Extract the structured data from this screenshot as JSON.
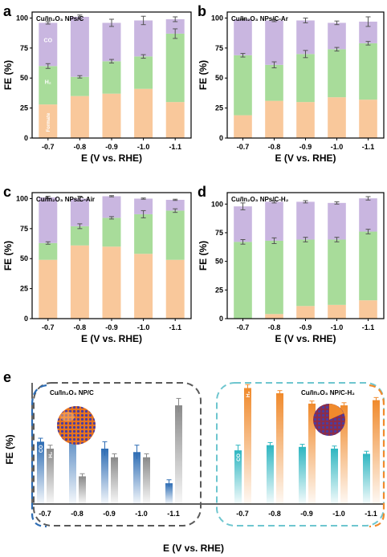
{
  "chart_data": [
    {
      "type": "bar",
      "stacked": true,
      "panel": "a",
      "title": "Cu/In₂O₃ NPs/C",
      "xlabel": "E (V vs. RHE)",
      "ylabel": "FE (%)",
      "categories": [
        "-0.7",
        "-0.8",
        "-0.9",
        "-1.0",
        "-1.1"
      ],
      "ylim": [
        0,
        105
      ],
      "yticks": [
        0,
        25,
        50,
        75,
        100
      ],
      "series": [
        {
          "name": "Formate",
          "color": "#F9C89B",
          "values": [
            28,
            35,
            37,
            41,
            30
          ]
        },
        {
          "name": "H₂",
          "color": "#A8DC9A",
          "values": [
            32,
            16,
            27,
            27,
            57
          ]
        },
        {
          "name": "CO",
          "color": "#C9B6E0",
          "values": [
            36,
            50,
            32,
            30,
            12
          ]
        }
      ],
      "error_bars": [
        {
          "at": "formate+h2",
          "values": [
            60,
            51,
            64,
            68,
            87
          ],
          "err": [
            2,
            1,
            1.5,
            1.5,
            4
          ]
        },
        {
          "at": "total",
          "values": [
            96,
            101,
            96,
            98,
            99
          ],
          "err": [
            1,
            1.5,
            3,
            3.5,
            2
          ]
        }
      ],
      "series_labels": [
        "CO",
        "H₂",
        "Formate"
      ]
    },
    {
      "type": "bar",
      "stacked": true,
      "panel": "b",
      "title": "Cu/In₂O₃ NPs/C-Ar",
      "xlabel": "E (V vs. RHE)",
      "ylabel": "FE (%)",
      "categories": [
        "-0.7",
        "-0.8",
        "-0.9",
        "-1.0",
        "-1.1"
      ],
      "ylim": [
        0,
        105
      ],
      "yticks": [
        0,
        25,
        50,
        75,
        100
      ],
      "series": [
        {
          "color": "#F9C89B",
          "values": [
            19,
            31,
            30,
            34,
            32
          ]
        },
        {
          "color": "#A8DC9A",
          "values": [
            50,
            30,
            40,
            40,
            47
          ]
        },
        {
          "color": "#C9B6E0",
          "values": [
            30,
            37,
            28,
            22,
            18
          ]
        }
      ],
      "error_bars": [
        {
          "at": "formate+h2",
          "values": [
            69,
            61,
            70,
            74,
            79
          ],
          "err": [
            1.5,
            2.5,
            3,
            1.5,
            1.5
          ]
        },
        {
          "at": "total",
          "values": [
            99,
            98,
            98,
            96,
            97
          ],
          "err": [
            0.5,
            1,
            2,
            1.5,
            4
          ]
        }
      ]
    },
    {
      "type": "bar",
      "stacked": true,
      "panel": "c",
      "title": "Cu/In₂O₃ NPs/C-Air",
      "xlabel": "E (V vs. RHE)",
      "ylabel": "FE (%)",
      "categories": [
        "-0.7",
        "-0.8",
        "-0.9",
        "-1.0",
        "-1.1"
      ],
      "ylim": [
        0,
        105
      ],
      "yticks": [
        0,
        25,
        50,
        75,
        100
      ],
      "series": [
        {
          "color": "#F9C89B",
          "values": [
            49,
            61,
            60,
            54,
            49
          ]
        },
        {
          "color": "#A8DC9A",
          "values": [
            14,
            16,
            24,
            33,
            41
          ]
        },
        {
          "color": "#C9B6E0",
          "values": [
            38,
            23,
            18,
            13,
            9
          ]
        }
      ],
      "error_bars": [
        {
          "at": "formate+h2",
          "values": [
            63,
            77,
            84,
            87,
            90
          ],
          "err": [
            1,
            2,
            1,
            3,
            1.5
          ]
        },
        {
          "at": "total",
          "values": [
            101,
            100,
            102,
            100,
            99
          ],
          "err": [
            1,
            2,
            0.5,
            0.5,
            0.5
          ]
        }
      ]
    },
    {
      "type": "bar",
      "stacked": true,
      "panel": "d",
      "title": "Cu/In₂O₃ NPs/C-H₂",
      "xlabel": "E (V vs. RHE)",
      "ylabel": "FE (%)",
      "categories": [
        "-0.7",
        "-0.8",
        "-0.9",
        "-1.0",
        "-1.1"
      ],
      "ylim": [
        0,
        110
      ],
      "yticks": [
        0,
        25,
        50,
        75,
        100
      ],
      "series": [
        {
          "color": "#F9C89B",
          "values": [
            0,
            4,
            11,
            12,
            16
          ]
        },
        {
          "color": "#A8DC9A",
          "values": [
            67,
            64,
            58,
            57,
            60
          ]
        },
        {
          "color": "#C9B6E0",
          "values": [
            31,
            34,
            33,
            32,
            29
          ]
        }
      ],
      "error_bars": [
        {
          "at": "formate+h2",
          "values": [
            67,
            68,
            69,
            69,
            76
          ],
          "err": [
            2,
            2.5,
            2,
            2,
            2
          ]
        },
        {
          "at": "total",
          "values": [
            98,
            102,
            102,
            101,
            105
          ],
          "err": [
            3,
            1,
            1,
            1,
            1.5
          ]
        }
      ]
    },
    {
      "type": "bar",
      "panel": "e",
      "xlabel": "E (V vs. RHE)",
      "ylabel": "FE (%)",
      "ylim": [
        0,
        70
      ],
      "left_group": {
        "title": "Cu/In₂O₃ NP/C",
        "categories": [
          "-0.7",
          "-0.8",
          "-0.9",
          "-1.0",
          "-1.1"
        ],
        "series": [
          {
            "name": "CO",
            "color": "#2E6DB4",
            "values": [
              36,
              50,
              32,
              30,
              12
            ],
            "err": [
              2,
              2,
              4,
              4,
              2
            ]
          },
          {
            "name": "H₂",
            "color": "#8A8A8A",
            "values": [
              32,
              16,
              27,
              27,
              57
            ],
            "err": [
              2,
              1.5,
              2,
              2,
              4
            ]
          }
        ]
      },
      "right_group": {
        "title": "Cu/In₂O₃ NP/C-H₂",
        "categories": [
          "-0.7",
          "-0.8",
          "-0.9",
          "-1.0",
          "-1.1"
        ],
        "series": [
          {
            "name": "CO",
            "color": "#2FB6C1",
            "values": [
              31,
              34,
              33,
              32,
              29
            ],
            "err": [
              3,
              1.5,
              1.5,
              1.5,
              1.5
            ]
          },
          {
            "name": "H₂",
            "color": "#F08A2C",
            "values": [
              67,
              64,
              58,
              57,
              60
            ],
            "err": [
              2,
              1.5,
              1.5,
              1.5,
              1.5
            ]
          }
        ]
      }
    }
  ],
  "panel_letters": [
    "a",
    "b",
    "c",
    "d",
    "e"
  ]
}
